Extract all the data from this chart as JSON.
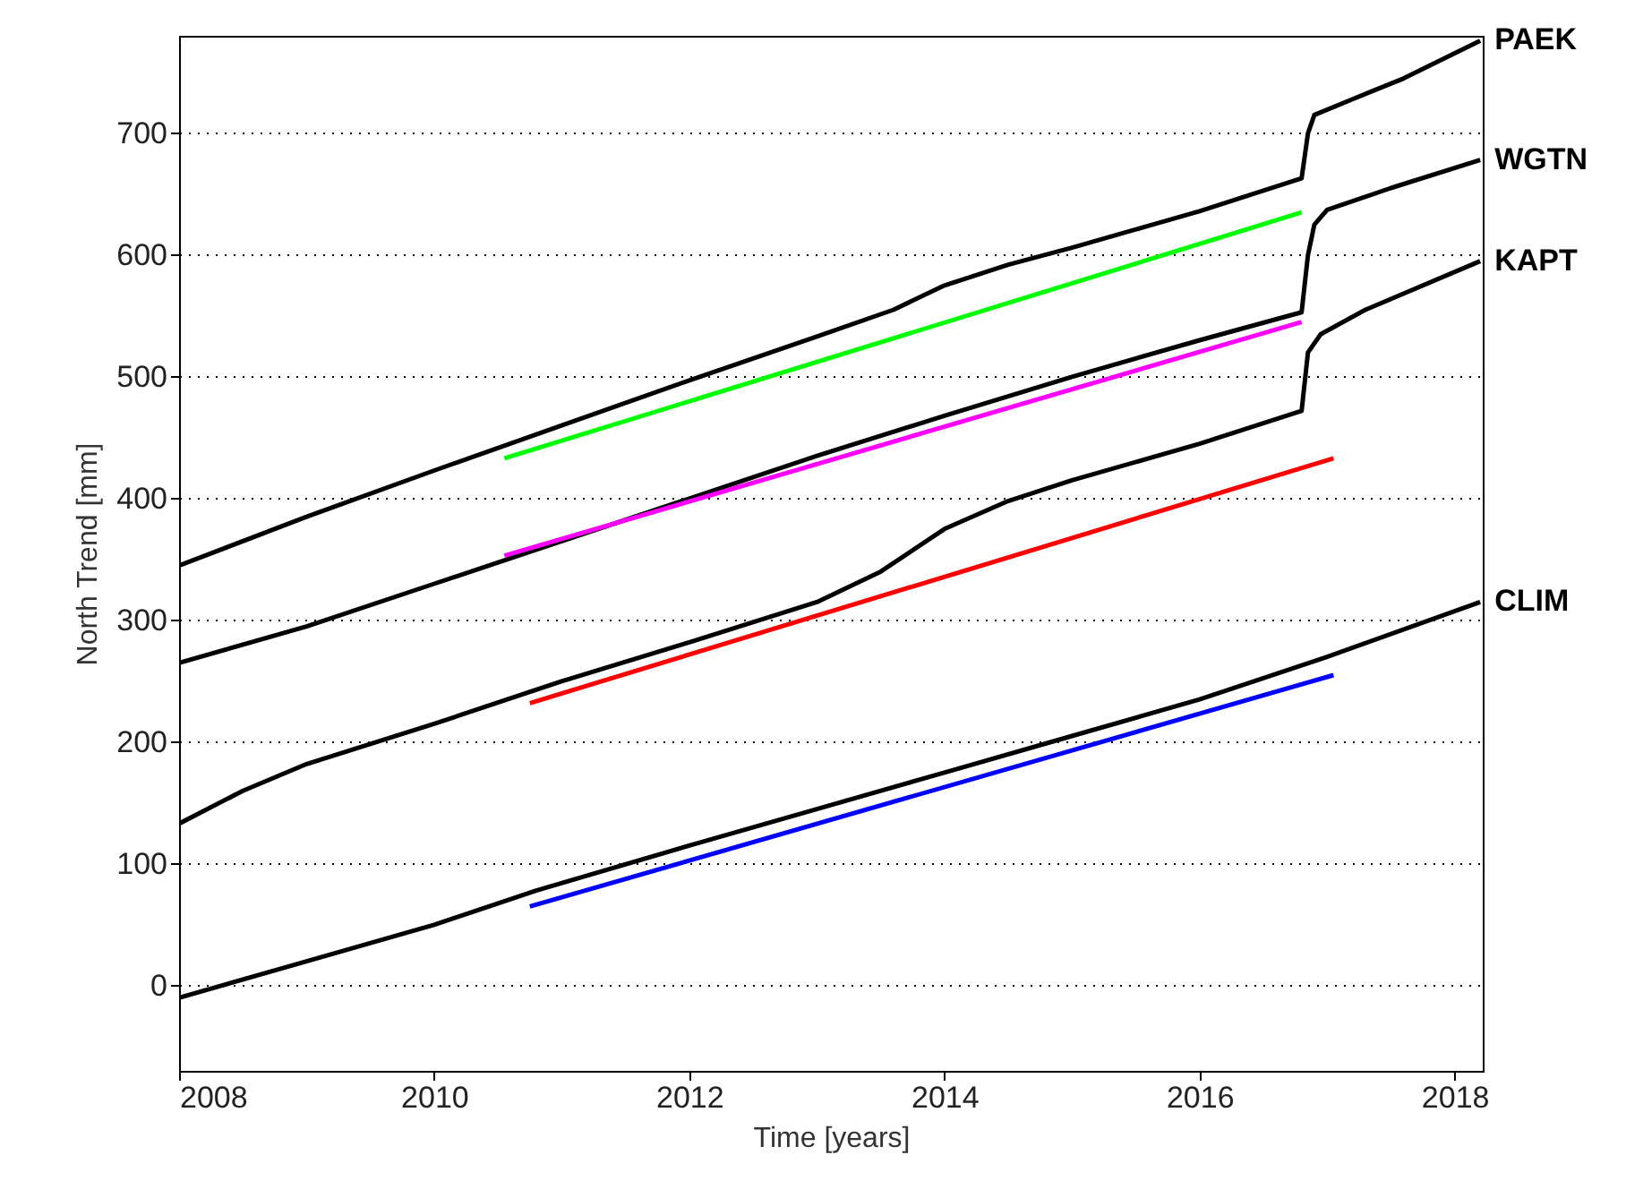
{
  "chart_data": {
    "type": "line",
    "xlabel": "Time [years]",
    "ylabel": "North Trend [mm]",
    "xlim": [
      2008,
      2018.22
    ],
    "xticks": [
      2008,
      2010,
      2012,
      2014,
      2016,
      2018
    ],
    "ylim": [
      -70,
      780
    ],
    "yticks": [
      0,
      100,
      200,
      300,
      400,
      500,
      600,
      700
    ],
    "grid": "y",
    "legend": false,
    "line_style": "solid",
    "marker": "none",
    "series": [
      {
        "name": "PAEK",
        "color": "#000000",
        "x": [
          2008,
          2009,
          2010,
          2011,
          2012,
          2013,
          2013.6,
          2014,
          2014.5,
          2015,
          2016,
          2016.8,
          2016.85,
          2016.9,
          2017.2,
          2017.6,
          2018.2
        ],
        "values": [
          345,
          385,
          423,
          460,
          497,
          533,
          555,
          575,
          592,
          606,
          636,
          663,
          700,
          715,
          728,
          745,
          776
        ]
      },
      {
        "name": "WGTN",
        "color": "#000000",
        "x": [
          2008,
          2009,
          2010,
          2011,
          2012,
          2013,
          2014,
          2015,
          2016,
          2016.8,
          2016.85,
          2016.9,
          2017,
          2017.5,
          2018.2
        ],
        "values": [
          265,
          295,
          330,
          365,
          400,
          435,
          468,
          500,
          530,
          553,
          600,
          625,
          637,
          655,
          678
        ]
      },
      {
        "name": "KAPT",
        "color": "#000000",
        "x": [
          2008,
          2008.5,
          2009,
          2010,
          2011,
          2012,
          2013,
          2013.5,
          2014,
          2014.5,
          2015,
          2016,
          2016.8,
          2016.85,
          2016.95,
          2017.3,
          2018.2
        ],
        "values": [
          133,
          160,
          182,
          215,
          250,
          282,
          315,
          340,
          375,
          398,
          415,
          445,
          472,
          520,
          535,
          555,
          595
        ]
      },
      {
        "name": "CLIM",
        "color": "#000000",
        "x": [
          2008,
          2009,
          2010,
          2010.8,
          2012,
          2013,
          2014,
          2015,
          2016,
          2017,
          2018.2
        ],
        "values": [
          -10,
          20,
          50,
          78,
          115,
          145,
          175,
          205,
          235,
          270,
          315
        ]
      },
      {
        "color": "#00ff00",
        "x": [
          2010.55,
          2016.8
        ],
        "values": [
          433,
          635
        ]
      },
      {
        "color": "#ff00ff",
        "x": [
          2010.55,
          2016.8
        ],
        "values": [
          353,
          545
        ]
      },
      {
        "color": "#ff0000",
        "x": [
          2010.75,
          2017.05
        ],
        "values": [
          232,
          433
        ]
      },
      {
        "color": "#0000ff",
        "x": [
          2010.75,
          2017.05
        ],
        "values": [
          65,
          255
        ]
      }
    ]
  }
}
